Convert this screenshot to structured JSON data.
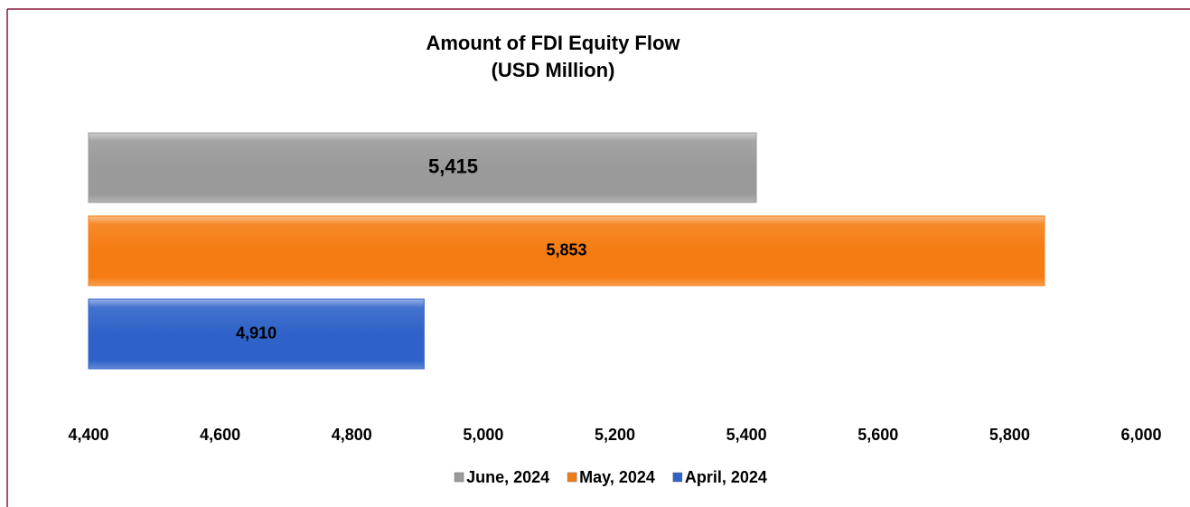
{
  "chart_data": {
    "type": "bar",
    "orientation": "horizontal",
    "title": "Amount of FDI Equity Flow",
    "subtitle": "(USD Million)",
    "categories": [
      null
    ],
    "series": [
      {
        "name": "June, 2024",
        "color": "#9a9a9a",
        "values": [
          5415
        ],
        "value_labels": [
          "5,415"
        ]
      },
      {
        "name": "May, 2024",
        "color": "#f57c12",
        "values": [
          5853
        ],
        "value_labels": [
          "5,853"
        ]
      },
      {
        "name": "April, 2024",
        "color": "#2e62c8",
        "values": [
          4910
        ],
        "value_labels": [
          "4,910"
        ]
      }
    ],
    "xlim": [
      4400,
      6000
    ],
    "xticks": [
      {
        "value": 4400,
        "label": "4,400"
      },
      {
        "value": 4600,
        "label": "4,600"
      },
      {
        "value": 4800,
        "label": "4,800"
      },
      {
        "value": 5000,
        "label": "5,000"
      },
      {
        "value": 5200,
        "label": "5,200"
      },
      {
        "value": 5400,
        "label": "5,400"
      },
      {
        "value": 5600,
        "label": "5,600"
      },
      {
        "value": 5800,
        "label": "5,800"
      },
      {
        "value": 6000,
        "label": "6,000"
      }
    ],
    "grid": false,
    "legend": "bottom"
  }
}
